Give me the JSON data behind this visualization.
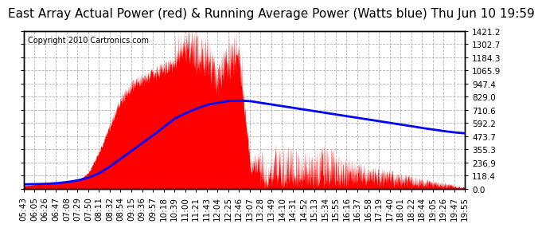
{
  "title": "East Array Actual Power (red) & Running Average Power (Watts blue) Thu Jun 10 19:59",
  "copyright": "Copyright 2010 Cartronics.com",
  "yticks": [
    0.0,
    118.4,
    236.9,
    355.3,
    473.7,
    592.2,
    710.6,
    829.0,
    947.4,
    1065.9,
    1184.3,
    1302.7,
    1421.2
  ],
  "xtick_labels": [
    "05:43",
    "06:05",
    "06:26",
    "06:47",
    "07:08",
    "07:29",
    "07:50",
    "08:11",
    "08:32",
    "08:54",
    "09:15",
    "09:36",
    "09:57",
    "10:18",
    "10:39",
    "11:00",
    "11:21",
    "11:43",
    "12:04",
    "12:25",
    "12:46",
    "13:07",
    "13:28",
    "13:49",
    "14:10",
    "14:31",
    "14:52",
    "15:13",
    "15:34",
    "15:55",
    "16:16",
    "16:37",
    "16:58",
    "17:19",
    "17:40",
    "18:01",
    "18:22",
    "18:44",
    "19:05",
    "19:26",
    "19:47",
    "19:55"
  ],
  "ymax": 1421.2,
  "ymin": 0.0,
  "background_color": "#ffffff",
  "plot_bg_color": "#ffffff",
  "grid_color": "#aaaaaa",
  "red_color": "#ff0000",
  "blue_color": "#0000ff",
  "title_fontsize": 11,
  "copyright_fontsize": 7,
  "tick_fontsize": 7.5
}
